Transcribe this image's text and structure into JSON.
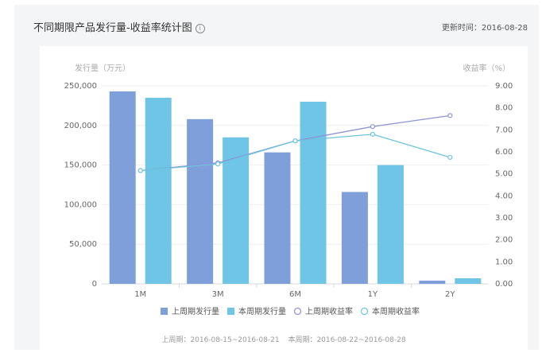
{
  "header": {
    "title": "不同期限产品发行量-收益率统计图",
    "updated": "更新时间：2016-08-28"
  },
  "footer": {
    "last_week": "上周期：2016-08-15~2016-08-21",
    "this_week": "本周期：2016-08-22~2016-08-28"
  },
  "chart_data": {
    "type": "bar",
    "categories": [
      "1M",
      "3M",
      "6M",
      "1Y",
      "2Y"
    ],
    "series": [
      {
        "name": "上周期发行量",
        "type": "bar",
        "axis": "left",
        "values": [
          243000,
          208000,
          166000,
          116000,
          4000
        ],
        "color": "#7f9fdb"
      },
      {
        "name": "本周期发行量",
        "type": "bar",
        "axis": "left",
        "values": [
          235000,
          185000,
          230000,
          150000,
          7000
        ],
        "color": "#6ec5e5"
      },
      {
        "name": "上周期收益率",
        "type": "line",
        "axis": "right",
        "values": [
          5.15,
          5.5,
          6.5,
          7.15,
          7.65
        ],
        "color": "#8b93d9"
      },
      {
        "name": "本周期收益率",
        "type": "line",
        "axis": "right",
        "values": [
          5.15,
          5.45,
          6.5,
          6.8,
          5.75
        ],
        "color": "#6cc4df"
      }
    ],
    "ylabel": "发行量（万元）",
    "ylabel_right": "收益率（%）",
    "ylim": [
      0,
      250000
    ],
    "ylim_right": [
      0,
      9
    ],
    "yticks": [
      "0",
      "50,000",
      "100,000",
      "150,000",
      "200,000",
      "250,000"
    ],
    "yticks_right": [
      "0.00",
      "1.00",
      "2.00",
      "3.00",
      "4.00",
      "5.00",
      "6.00",
      "7.00",
      "8.00",
      "9.00"
    ],
    "grid": true,
    "legend": "bottom"
  }
}
